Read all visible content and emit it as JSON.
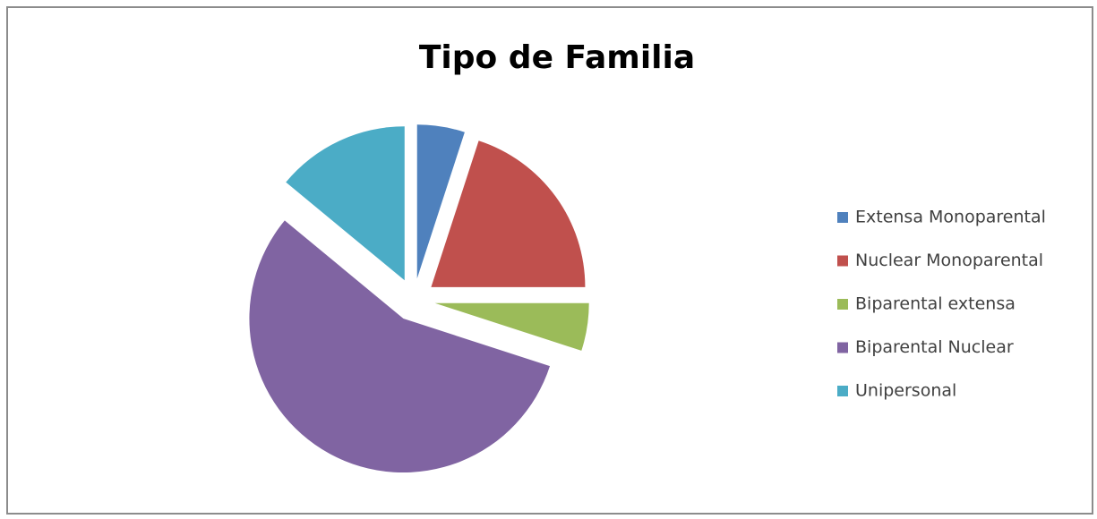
{
  "chart_data": {
    "type": "pie",
    "title": "Tipo de Familia",
    "categories": [
      "Extensa Monoparental",
      "Nuclear Monoparental",
      "Biparental extensa",
      "Biparental Nuclear",
      "Unipersonal"
    ],
    "values": [
      5,
      20,
      5,
      56,
      14
    ],
    "colors": [
      "#4f81bd",
      "#c0504d",
      "#9bbb59",
      "#8064a2",
      "#4bacc6"
    ],
    "exploded": true,
    "legend": "right"
  }
}
